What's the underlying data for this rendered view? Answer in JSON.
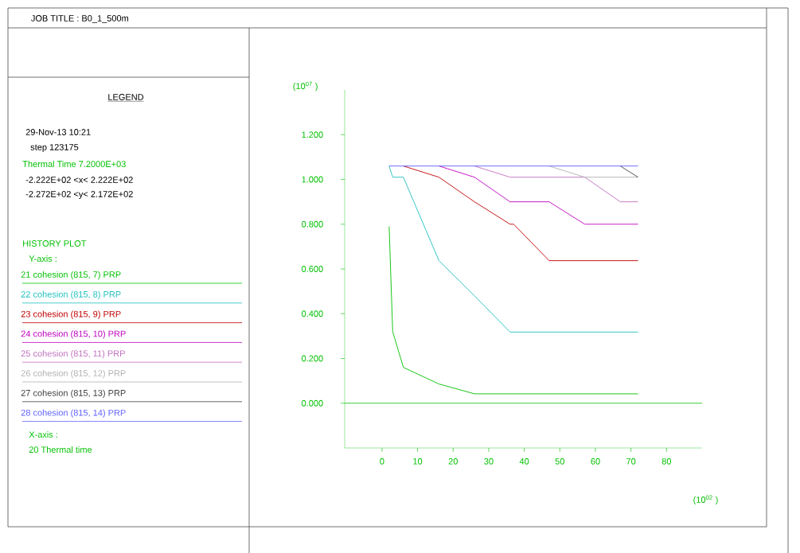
{
  "chart_data": {
    "type": "line",
    "title": "JOB TITLE : B0_1_500m",
    "xlabel": "(10$^{02}$ )",
    "ylabel": "(10$^{07}$ )",
    "x": [
      2,
      3,
      6,
      16,
      26,
      36,
      37,
      47,
      57,
      67,
      72
    ],
    "series": [
      {
        "name": "21 cohesion (815, 7) PRP",
        "color": "#00c000",
        "values": [
          0.79,
          0.32,
          0.16,
          0.086,
          0.042,
          0.042,
          0.042,
          0.042,
          0.042,
          0.042,
          0.042
        ]
      },
      {
        "name": "22 cohesion (815, 8) PRP",
        "color": "#20c0c0",
        "values": [
          1.06,
          1.01,
          1.01,
          0.637,
          0.48,
          0.318,
          0.318,
          0.318,
          0.318,
          0.318,
          0.318
        ]
      },
      {
        "name": "23 cohesion (815, 9) PRP",
        "color": "#c00000",
        "values": [
          null,
          null,
          1.06,
          1.01,
          0.9,
          0.8,
          0.8,
          0.637,
          0.637,
          0.637,
          0.637
        ]
      },
      {
        "name": "24 cohesion (815, 10) PRP",
        "color": "#c000c0",
        "values": [
          null,
          null,
          null,
          1.06,
          1.01,
          0.9,
          0.9,
          0.9,
          0.8,
          0.8,
          0.8
        ]
      },
      {
        "name": "25 cohesion (815, 11) PRP",
        "color": "#c070c0",
        "values": [
          null,
          null,
          null,
          null,
          1.06,
          1.01,
          1.01,
          1.01,
          1.01,
          0.9,
          0.9
        ]
      },
      {
        "name": "26 cohesion (815, 12) PRP",
        "color": "#b0b0b0",
        "values": [
          null,
          null,
          null,
          null,
          null,
          null,
          null,
          1.06,
          1.01,
          1.01,
          1.01
        ]
      },
      {
        "name": "27 cohesion (815, 13) PRP",
        "color": "#404040",
        "values": [
          null,
          null,
          null,
          null,
          null,
          null,
          null,
          null,
          null,
          1.06,
          1.01
        ]
      },
      {
        "name": "28 cohesion (815, 14) PRP",
        "color": "#6060ff",
        "values": [
          1.06,
          1.06,
          1.06,
          1.06,
          1.06,
          1.06,
          1.06,
          1.06,
          1.06,
          1.06,
          1.06
        ]
      }
    ],
    "xlim": [
      -10.5,
      90
    ],
    "ylim": [
      -0.2,
      1.4
    ],
    "xticks": [
      0,
      10,
      20,
      30,
      40,
      50,
      60,
      70,
      80
    ],
    "yticks": [
      {
        "value": 0,
        "label": "0.000"
      },
      {
        "value": 0.2,
        "label": "0.200"
      },
      {
        "value": 0.4,
        "label": "0.400"
      },
      {
        "value": 0.6,
        "label": "0.600"
      },
      {
        "value": 0.8,
        "label": "0.800"
      },
      {
        "value": 1.0,
        "label": "1.000"
      },
      {
        "value": 1.2,
        "label": "1.200"
      }
    ],
    "ref_lines": [
      {
        "axis": "y",
        "value": 0,
        "color": "#00c000"
      }
    ],
    "legend": "left",
    "marker": "none",
    "annotations": [
      "LEGEND",
      "29-Nov-13 10:21",
      "step 123175",
      "Thermal Time 7.2000E+03",
      "-2.222E+02 <x< 2.222E+02",
      "-2.272E+02 <y< 2.172E+02",
      "HISTORY PLOT",
      "Y-axis :",
      "X-axis :",
      "20 Thermal time"
    ]
  }
}
